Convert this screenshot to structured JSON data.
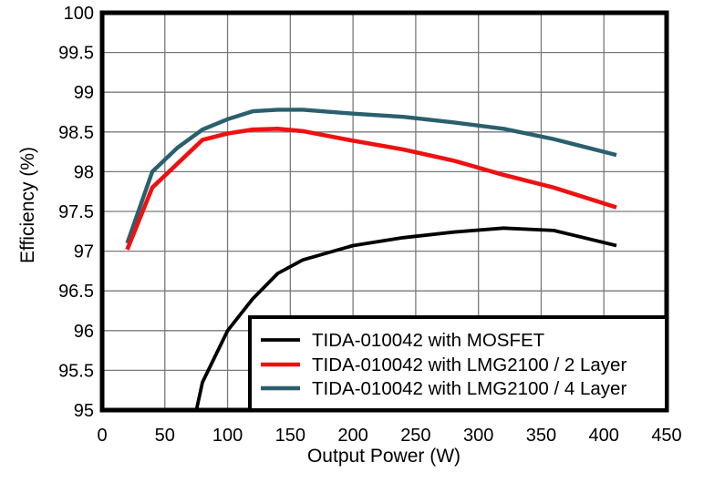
{
  "chart_data": {
    "type": "line",
    "title": "",
    "xlabel": "Output Power (W)",
    "ylabel": "Efficiency (%)",
    "xlim": [
      0,
      450
    ],
    "ylim": [
      95,
      100
    ],
    "x_ticks": [
      0,
      50,
      100,
      150,
      200,
      250,
      300,
      350,
      400,
      450
    ],
    "y_ticks": [
      95,
      95.5,
      96,
      96.5,
      97,
      97.5,
      98,
      98.5,
      99,
      99.5,
      100
    ],
    "grid": true,
    "grid_color": "#7a7a7a",
    "axis_border_color": "#000000",
    "legend_position": "bottom-right",
    "series": [
      {
        "id": "mosfet",
        "name": "TIDA-010042 with MOSFET",
        "color": "#000000",
        "width": 3.8,
        "x": [
          60,
          80,
          100,
          120,
          140,
          160,
          200,
          240,
          280,
          320,
          360,
          410
        ],
        "y": [
          93.9,
          95.35,
          96.0,
          96.4,
          96.72,
          96.89,
          97.07,
          97.17,
          97.24,
          97.29,
          97.26,
          97.07
        ]
      },
      {
        "id": "lmg2100-2layer",
        "name": "TIDA-010042 with LMG2100 / 2 Layer",
        "color": "#ee1111",
        "width": 4.6,
        "x": [
          20,
          40,
          60,
          80,
          100,
          120,
          140,
          160,
          200,
          240,
          280,
          320,
          360,
          410
        ],
        "y": [
          97.02,
          97.8,
          98.1,
          98.4,
          98.48,
          98.53,
          98.54,
          98.51,
          98.39,
          98.28,
          98.14,
          97.96,
          97.8,
          97.55
        ]
      },
      {
        "id": "lmg2100-4layer",
        "name": "TIDA-010042 with LMG2100 / 4 Layer",
        "color": "#2a5f6e",
        "width": 4.4,
        "x": [
          20,
          40,
          60,
          80,
          100,
          120,
          140,
          160,
          200,
          240,
          280,
          320,
          360,
          410
        ],
        "y": [
          97.1,
          98.0,
          98.3,
          98.53,
          98.66,
          98.76,
          98.78,
          98.78,
          98.73,
          98.69,
          98.62,
          98.54,
          98.41,
          98.21
        ]
      }
    ]
  }
}
